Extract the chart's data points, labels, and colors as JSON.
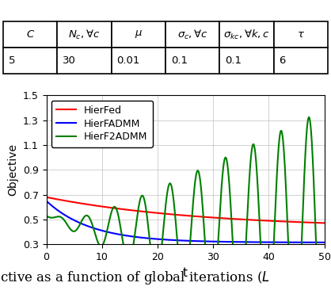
{
  "xlabel": "t",
  "ylabel": "Objective",
  "xlim": [
    0,
    50
  ],
  "ylim": [
    0.3,
    1.5
  ],
  "yticks": [
    0.3,
    0.5,
    0.7,
    0.9,
    1.1,
    1.3,
    1.5
  ],
  "xticks": [
    0,
    10,
    20,
    30,
    40,
    50
  ],
  "legend": [
    "HierFed",
    "HierFADMM",
    "HierF2ADMM"
  ],
  "line_colors": [
    "#ff0000",
    "#0000ff",
    "#008000"
  ],
  "col_labels": [
    "$C$",
    "$N_c, \\forall c$",
    "$\\mu$",
    "$\\sigma_c, \\forall c$",
    "$\\sigma_{kc}, \\forall k,c$",
    "$\\tau$"
  ],
  "cell_values": [
    "5",
    "30",
    "0.01",
    "0.1",
    "0.1",
    "6"
  ],
  "caption": "ctive as a function of global iterations ($L$"
}
